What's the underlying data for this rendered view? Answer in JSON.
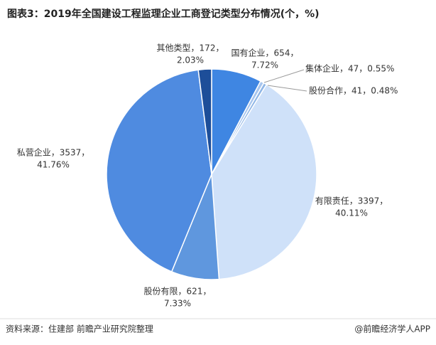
{
  "chart_data": {
    "type": "pie",
    "title": "图表3：2019年全国建设工程监理企业工商登记类型分布情况(个，%)",
    "values": [
      654,
      47,
      41,
      3397,
      621,
      3537,
      172
    ],
    "value_labels": [
      [
        "国有企业，654，",
        "7.72%"
      ],
      [
        "集体企业，47，0.55%"
      ],
      [
        "股份合作，41，0.48%"
      ],
      [
        "有限责任，3397，",
        "40.11%"
      ],
      [
        "股份有限，621，",
        "7.33%"
      ],
      [
        "私营企业，3537，",
        "41.76%"
      ],
      [
        "其他类型，172，",
        "2.03%"
      ]
    ],
    "colors": [
      "#3f86e2",
      "#a8c6ee",
      "#8fb6e6",
      "#cfe1f9",
      "#5f97de",
      "#4f8be0",
      "#1d4e99"
    ],
    "source": "资料来源：住建部 前瞻产业研究院整理",
    "credit": "@前瞻经济学人APP"
  }
}
